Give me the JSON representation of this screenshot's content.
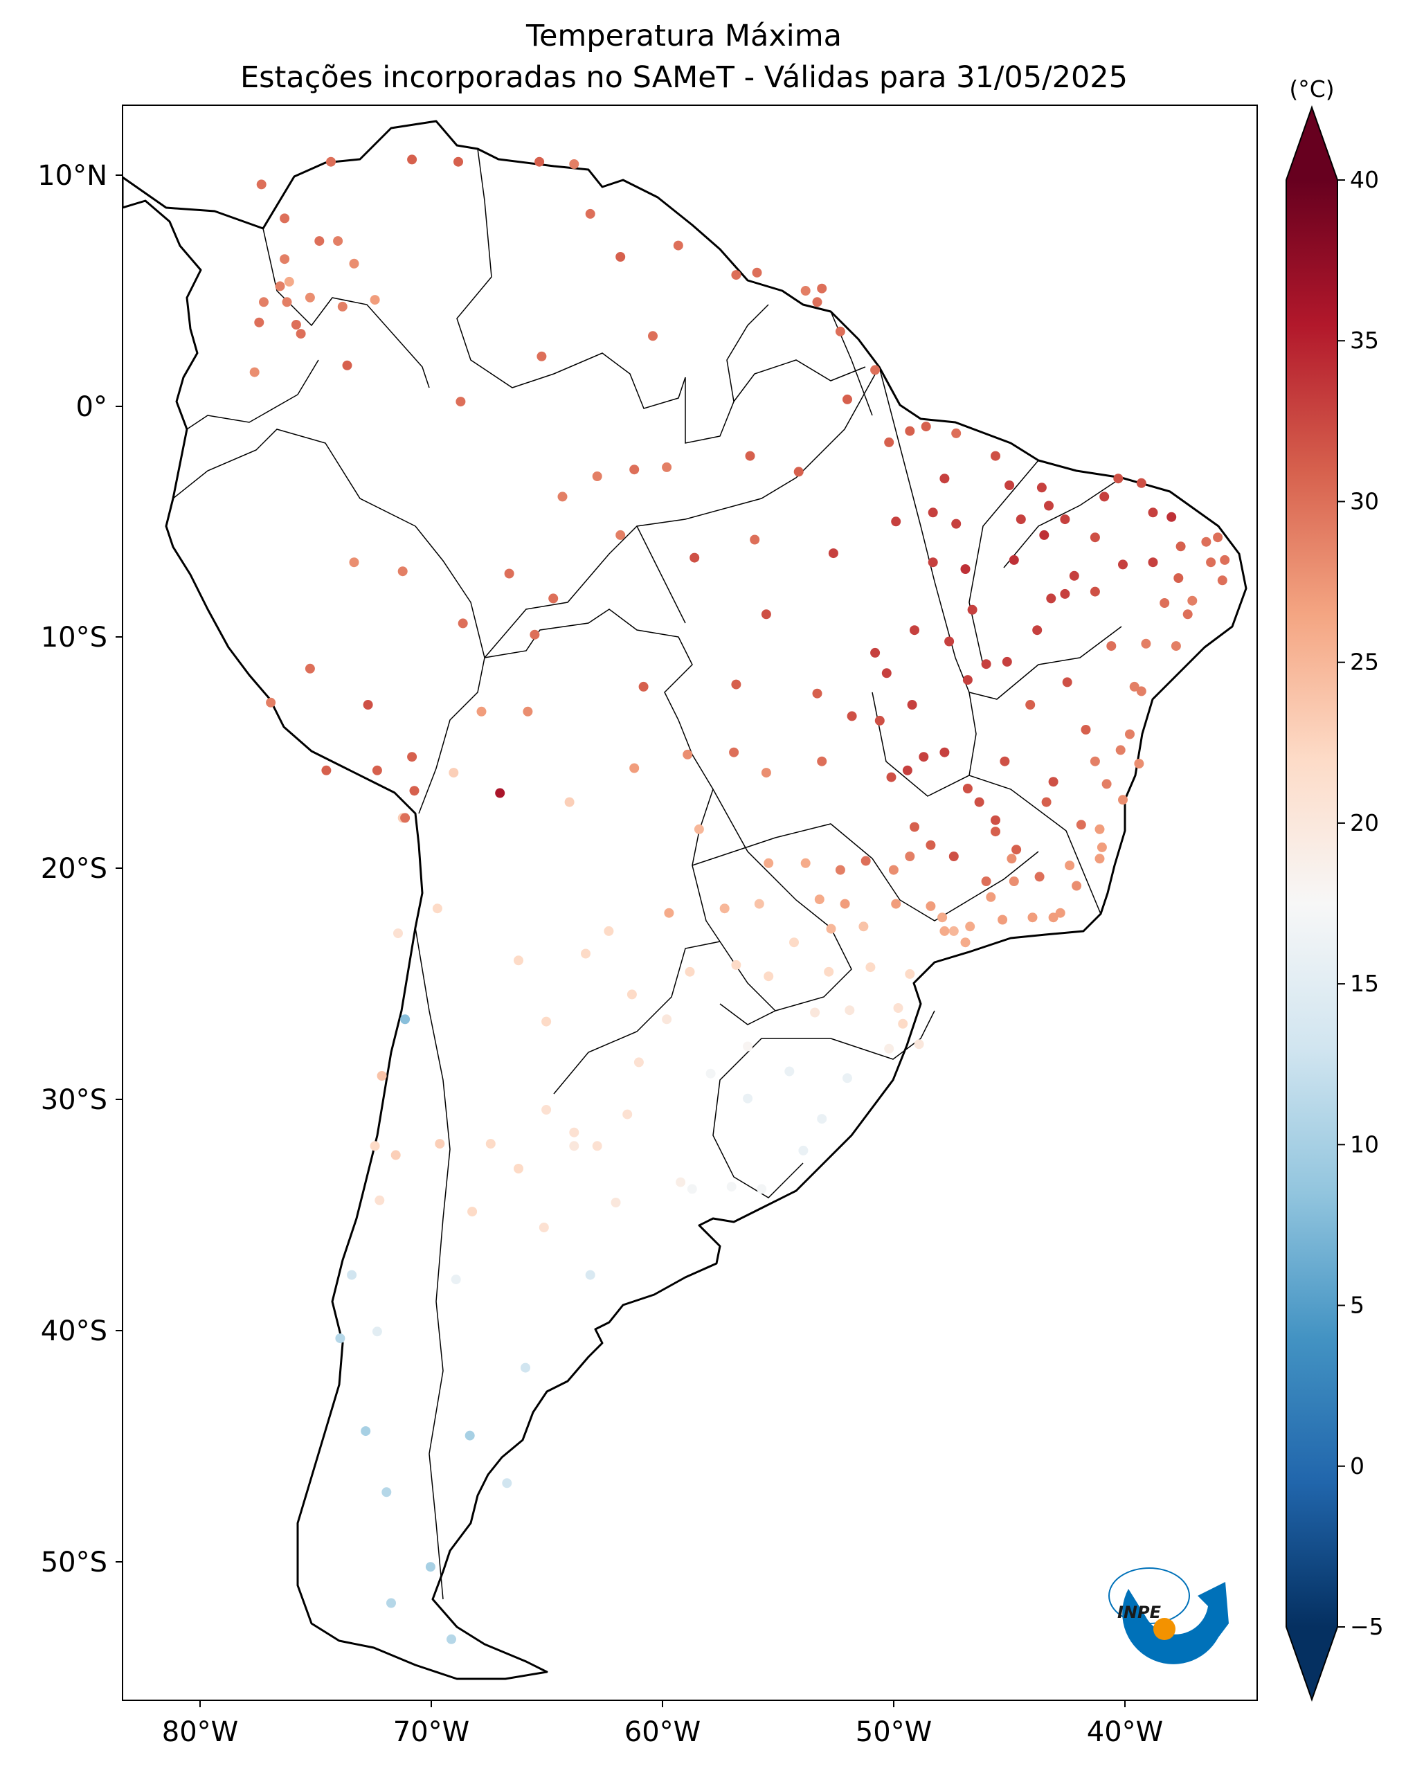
{
  "title": {
    "line1": "Temperatura Máxima",
    "line2": "Estações incorporadas no SAMeT - Válidas para 31/05/2025"
  },
  "axes": {
    "lon_ticks": [
      "80°W",
      "70°W",
      "60°W",
      "50°W",
      "40°W"
    ],
    "lat_ticks": [
      "10°N",
      "0°",
      "10°S",
      "20°S",
      "30°S",
      "40°S",
      "50°S"
    ]
  },
  "colorbar": {
    "unit": "(°C)",
    "ticks": [
      "40",
      "35",
      "30",
      "25",
      "20",
      "15",
      "10",
      "5",
      "0",
      "-5"
    ],
    "vmin": -5,
    "vmax": 40,
    "cmap": "RdBu_r",
    "colors": [
      "#053061",
      "#2166ac",
      "#4393c3",
      "#92c5de",
      "#d1e5f0",
      "#f7f7f7",
      "#fddbc7",
      "#f4a582",
      "#d6604d",
      "#b2182b",
      "#67001f"
    ]
  },
  "logo": {
    "text": "INPE",
    "colors": [
      "#0071b9",
      "#f39200"
    ]
  },
  "chart_data": {
    "type": "scatter",
    "title": "Temperatura Máxima — Estações incorporadas no SAMeT - Válidas para 31/05/2025",
    "xlim": [
      -82.5,
      -33.5
    ],
    "ylim": [
      -57.5,
      13.0
    ],
    "points_lon_lat_tmax": [
      [
        -76.5,
        9.5,
        30
      ],
      [
        -75.5,
        8.0,
        30
      ],
      [
        -74.0,
        7.0,
        30
      ],
      [
        -73.2,
        7.0,
        29
      ],
      [
        -72.5,
        6.0,
        28
      ],
      [
        -75.5,
        6.2,
        29
      ],
      [
        -75.7,
        5.0,
        29
      ],
      [
        -76.4,
        4.3,
        29
      ],
      [
        -75.4,
        4.3,
        29
      ],
      [
        -74.4,
        4.5,
        28
      ],
      [
        -73.0,
        4.1,
        29
      ],
      [
        -74.8,
        2.9,
        30
      ],
      [
        -76.6,
        3.4,
        30
      ],
      [
        -75.0,
        3.3,
        30
      ],
      [
        -71.6,
        4.4,
        27
      ],
      [
        -75.3,
        5.2,
        26
      ],
      [
        -72.8,
        1.5,
        31
      ],
      [
        -76.8,
        1.2,
        28
      ],
      [
        -73.5,
        10.5,
        30
      ],
      [
        -70.0,
        10.6,
        31
      ],
      [
        -68.0,
        10.5,
        31
      ],
      [
        -64.5,
        10.5,
        31
      ],
      [
        -63.0,
        10.4,
        29
      ],
      [
        -62.3,
        8.2,
        30
      ],
      [
        -61.0,
        6.3,
        31
      ],
      [
        -58.5,
        6.8,
        30
      ],
      [
        -56.0,
        5.5,
        30
      ],
      [
        -55.1,
        5.6,
        30
      ],
      [
        -53.0,
        4.8,
        29
      ],
      [
        -52.5,
        4.3,
        30
      ],
      [
        -52.3,
        4.9,
        30
      ],
      [
        -51.5,
        3.0,
        30
      ],
      [
        -51.2,
        0.0,
        31
      ],
      [
        -50.0,
        1.3,
        30
      ],
      [
        -48.5,
        -1.4,
        31
      ],
      [
        -49.4,
        -1.9,
        31
      ],
      [
        -47.8,
        -1.2,
        31
      ],
      [
        -46.5,
        -1.5,
        30
      ],
      [
        -44.8,
        -2.5,
        32
      ],
      [
        -47.0,
        -3.5,
        33
      ],
      [
        -47.5,
        -5.0,
        33
      ],
      [
        -46.5,
        -5.5,
        33
      ],
      [
        -44.2,
        -3.8,
        33
      ],
      [
        -42.8,
        -3.9,
        33
      ],
      [
        -42.5,
        -4.7,
        33
      ],
      [
        -41.8,
        -5.3,
        33
      ],
      [
        -40.1,
        -4.3,
        33
      ],
      [
        -39.5,
        -3.5,
        32
      ],
      [
        -38.5,
        -3.7,
        32
      ],
      [
        -38.0,
        -5.0,
        33
      ],
      [
        -37.2,
        -5.2,
        34
      ],
      [
        -36.8,
        -6.5,
        31
      ],
      [
        -35.7,
        -6.3,
        30
      ],
      [
        -35.5,
        -7.2,
        30
      ],
      [
        -35.0,
        -8.0,
        30
      ],
      [
        -34.9,
        -7.1,
        30
      ],
      [
        -36.3,
        -8.9,
        29
      ],
      [
        -37.0,
        -10.9,
        29
      ],
      [
        -38.5,
        -12.9,
        29
      ],
      [
        -39.0,
        -14.8,
        29
      ],
      [
        -40.5,
        -16.0,
        29
      ],
      [
        -39.3,
        -17.7,
        28
      ],
      [
        -40.3,
        -19.0,
        27
      ],
      [
        -40.3,
        -20.3,
        27
      ],
      [
        -41.3,
        -21.5,
        28
      ],
      [
        -42.3,
        -22.9,
        27
      ],
      [
        -43.2,
        -22.9,
        27
      ],
      [
        -44.5,
        -23.0,
        27
      ],
      [
        -45.9,
        -23.3,
        26
      ],
      [
        -47.0,
        -23.5,
        26
      ],
      [
        -48.5,
        -25.4,
        22
      ],
      [
        -48.8,
        -27.6,
        22
      ],
      [
        -49.4,
        -28.7,
        19
      ],
      [
        -51.2,
        -30.0,
        16
      ],
      [
        -52.3,
        -31.8,
        16
      ],
      [
        -53.1,
        -33.2,
        16
      ],
      [
        -54.9,
        -34.9,
        17
      ],
      [
        -56.2,
        -34.8,
        17
      ],
      [
        -57.9,
        -34.9,
        17
      ],
      [
        -58.4,
        -34.6,
        19
      ],
      [
        -61.2,
        -35.5,
        20
      ],
      [
        -62.3,
        -38.7,
        14
      ],
      [
        -64.3,
        -36.6,
        21
      ],
      [
        -64.2,
        -31.4,
        21
      ],
      [
        -65.4,
        -24.8,
        22
      ],
      [
        -64.2,
        -27.5,
        22
      ],
      [
        -68.8,
        -32.9,
        23
      ],
      [
        -70.6,
        -23.6,
        21
      ],
      [
        -70.4,
        -18.5,
        23
      ],
      [
        -68.2,
        -16.5,
        23
      ],
      [
        -66.2,
        -17.4,
        36
      ],
      [
        -63.2,
        -17.8,
        23
      ],
      [
        -60.4,
        -16.3,
        27
      ],
      [
        -58.1,
        -15.7,
        28
      ],
      [
        -56.1,
        -15.6,
        30
      ],
      [
        -54.7,
        -16.5,
        28
      ],
      [
        -52.3,
        -16.0,
        30
      ],
      [
        -49.3,
        -16.7,
        32
      ],
      [
        -47.9,
        -15.8,
        33
      ],
      [
        -48.3,
        -10.2,
        33
      ],
      [
        -47.5,
        -7.2,
        33
      ],
      [
        -49.1,
        -5.4,
        33
      ],
      [
        -51.8,
        -6.8,
        33
      ],
      [
        -54.7,
        -9.5,
        32
      ],
      [
        -56.0,
        -12.6,
        31
      ],
      [
        -52.5,
        -13.0,
        31
      ],
      [
        -60.0,
        -12.7,
        31
      ],
      [
        -63.9,
        -8.8,
        30
      ],
      [
        -67.8,
        -9.9,
        30
      ],
      [
        -70.4,
        -7.6,
        29
      ],
      [
        -72.5,
        -7.2,
        28
      ],
      [
        -74.4,
        -11.9,
        30
      ],
      [
        -76.1,
        -13.4,
        29
      ],
      [
        -71.9,
        -13.5,
        32
      ],
      [
        -70.0,
        -15.8,
        31
      ],
      [
        -71.5,
        -16.4,
        31
      ],
      [
        -73.7,
        -16.4,
        31
      ],
      [
        -69.9,
        -17.3,
        31
      ],
      [
        -70.3,
        -18.5,
        30
      ],
      [
        -67.0,
        -13.8,
        27
      ],
      [
        -65.0,
        -13.8,
        28
      ],
      [
        -64.7,
        -10.4,
        30
      ],
      [
        -60.4,
        -3.1,
        30
      ],
      [
        -59.0,
        -3.0,
        29
      ],
      [
        -62.0,
        -3.4,
        29
      ],
      [
        -63.5,
        -4.3,
        29
      ],
      [
        -61.0,
        -6.0,
        29
      ],
      [
        -65.8,
        -7.7,
        30
      ],
      [
        -67.9,
        -0.1,
        30
      ],
      [
        -64.4,
        1.9,
        30
      ],
      [
        -59.6,
        2.8,
        30
      ],
      [
        -55.4,
        -2.5,
        31
      ],
      [
        -53.3,
        -3.2,
        31
      ],
      [
        -55.2,
        -6.2,
        30
      ],
      [
        -57.8,
        -7.0,
        32
      ],
      [
        -48.3,
        -18.9,
        31
      ],
      [
        -47.6,
        -19.7,
        31
      ],
      [
        -46.6,
        -20.2,
        32
      ],
      [
        -45.2,
        -21.3,
        30
      ],
      [
        -43.9,
        -19.9,
        31
      ],
      [
        -42.6,
        -17.8,
        31
      ],
      [
        -44.8,
        -18.6,
        32
      ],
      [
        -46.0,
        -17.2,
        32
      ],
      [
        -49.2,
        -20.8,
        28
      ],
      [
        -50.4,
        -20.4,
        30
      ],
      [
        -51.5,
        -20.8,
        29
      ],
      [
        -53.0,
        -20.5,
        26
      ],
      [
        -54.6,
        -20.5,
        26
      ],
      [
        -57.6,
        -19.0,
        25
      ],
      [
        -56.5,
        -22.5,
        25
      ],
      [
        -55.0,
        -22.3,
        24
      ],
      [
        -52.4,
        -22.1,
        26
      ],
      [
        -51.3,
        -22.3,
        27
      ],
      [
        -49.1,
        -22.3,
        27
      ],
      [
        -47.1,
        -22.9,
        26
      ],
      [
        -45.0,
        -22.0,
        27
      ],
      [
        -46.6,
        -23.5,
        25
      ],
      [
        -50.5,
        -23.3,
        24
      ],
      [
        -51.9,
        -23.4,
        25
      ],
      [
        -53.5,
        -24.0,
        22
      ],
      [
        -54.6,
        -25.5,
        22
      ],
      [
        -52.0,
        -25.3,
        22
      ],
      [
        -50.2,
        -25.1,
        22
      ],
      [
        -49.0,
        -26.9,
        21
      ],
      [
        -51.1,
        -27.0,
        20
      ],
      [
        -52.6,
        -27.1,
        20
      ],
      [
        -53.7,
        -29.7,
        16
      ],
      [
        -55.5,
        -30.9,
        16
      ],
      [
        -57.1,
        -29.8,
        17
      ],
      [
        -55.5,
        -28.6,
        18
      ],
      [
        -59.0,
        -27.4,
        20
      ],
      [
        -60.7,
        -31.6,
        21
      ],
      [
        -62.0,
        -33.0,
        21
      ],
      [
        -63.0,
        -32.4,
        21
      ],
      [
        -65.4,
        -34.0,
        22
      ],
      [
        -66.6,
        -32.9,
        22
      ],
      [
        -67.4,
        -35.9,
        22
      ],
      [
        -68.1,
        -38.9,
        16
      ],
      [
        -65.1,
        -42.8,
        13
      ],
      [
        -67.5,
        -45.8,
        10
      ],
      [
        -69.2,
        -51.6,
        10
      ],
      [
        -70.9,
        -53.2,
        11
      ],
      [
        -68.3,
        -54.8,
        11
      ],
      [
        -71.5,
        -41.2,
        15
      ],
      [
        -72.0,
        -45.6,
        10
      ],
      [
        -73.1,
        -41.5,
        11
      ],
      [
        -72.6,
        -38.7,
        13
      ],
      [
        -71.4,
        -35.4,
        21
      ],
      [
        -70.7,
        -33.4,
        23
      ],
      [
        -71.6,
        -33.0,
        22
      ],
      [
        -71.3,
        -29.9,
        24
      ],
      [
        -70.3,
        -27.4,
        8
      ],
      [
        -68.9,
        -22.5,
        22
      ],
      [
        -65.9,
        -47.9,
        13
      ],
      [
        -71.1,
        -48.3,
        11
      ],
      [
        -63.0,
        -33.0,
        20
      ],
      [
        -60.2,
        -29.3,
        21
      ],
      [
        -60.5,
        -26.3,
        22
      ],
      [
        -62.5,
        -24.5,
        22
      ],
      [
        -61.5,
        -23.5,
        22
      ],
      [
        -58.9,
        -22.7,
        26
      ],
      [
        -58.0,
        -25.3,
        22
      ],
      [
        -56.0,
        -25.0,
        22
      ],
      [
        -47.6,
        -22.4,
        27
      ],
      [
        -48.5,
        -20.2,
        29
      ],
      [
        -46.1,
        -24.0,
        26
      ],
      [
        -44.1,
        -20.3,
        28
      ],
      [
        -41.6,
        -20.6,
        27
      ],
      [
        -40.0,
        -17.0,
        29
      ],
      [
        -39.4,
        -15.5,
        29
      ],
      [
        -38.8,
        -12.7,
        29
      ],
      [
        -38.3,
        -10.8,
        29
      ],
      [
        -36.5,
        -9.5,
        30
      ],
      [
        -35.2,
        -6.1,
        30
      ],
      [
        -38.0,
        -7.2,
        33
      ],
      [
        -39.3,
        -7.3,
        33
      ],
      [
        -40.5,
        -8.5,
        32
      ],
      [
        -41.4,
        -7.8,
        33
      ],
      [
        -42.4,
        -8.8,
        33
      ],
      [
        -43.0,
        -10.2,
        33
      ],
      [
        -44.3,
        -11.6,
        33
      ],
      [
        -45.2,
        -11.7,
        33
      ],
      [
        -46.0,
        -12.4,
        33
      ],
      [
        -43.3,
        -13.5,
        31
      ],
      [
        -41.7,
        -12.5,
        32
      ],
      [
        -40.9,
        -14.6,
        31
      ],
      [
        -44.4,
        -16.0,
        32
      ],
      [
        -42.3,
        -16.9,
        32
      ],
      [
        -41.1,
        -18.8,
        30
      ],
      [
        -42.9,
        -21.1,
        30
      ],
      [
        -44.0,
        -21.3,
        28
      ],
      [
        -44.8,
        -19.1,
        31
      ],
      [
        -45.5,
        -17.8,
        32
      ],
      [
        -47.0,
        -15.6,
        33
      ],
      [
        -48.4,
        -13.5,
        33
      ],
      [
        -49.5,
        -12.1,
        33
      ],
      [
        -50.0,
        -11.2,
        33
      ],
      [
        -51.0,
        -14.0,
        32
      ],
      [
        -49.8,
        -14.2,
        32
      ],
      [
        -48.6,
        -16.4,
        33
      ],
      [
        -46.8,
        -10.7,
        33
      ],
      [
        -45.8,
        -9.3,
        33
      ],
      [
        -46.1,
        -7.5,
        34
      ],
      [
        -44.0,
        -7.1,
        34
      ],
      [
        -42.7,
        -6.0,
        34
      ],
      [
        -41.8,
        -8.6,
        33
      ],
      [
        -43.7,
        -5.3,
        33
      ],
      [
        -40.5,
        -6.1,
        32
      ],
      [
        -36.9,
        -7.9,
        31
      ],
      [
        -37.5,
        -9.0,
        30
      ],
      [
        -39.8,
        -10.9,
        30
      ],
      [
        -38.6,
        -16.1,
        28
      ],
      [
        -40.2,
        -19.8,
        27
      ],
      [
        -42.0,
        -22.7,
        27
      ],
      [
        -48.1,
        -28.5,
        20
      ]
    ]
  }
}
